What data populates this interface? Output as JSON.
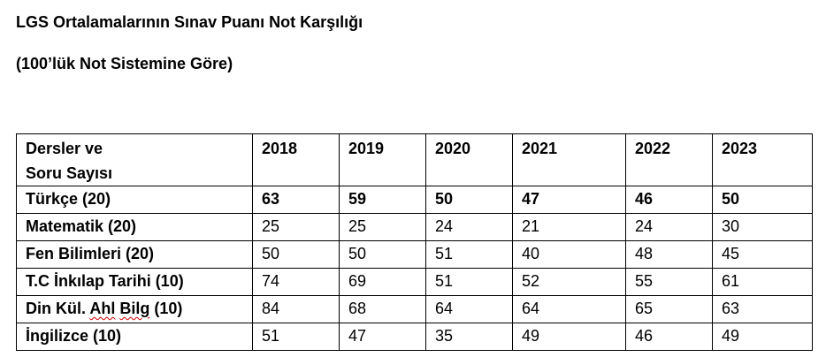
{
  "document": {
    "title": "LGS Ortalamalarının Sınav Puanı Not Karşılığı",
    "subtitle": "(100’lük Not Sistemine Göre)"
  },
  "table": {
    "header": {
      "subject_line1": "Dersler ve",
      "subject_line2": "Soru Sayısı",
      "years": [
        "2018",
        "2019",
        "2020",
        "2021",
        "2022",
        "2023"
      ]
    },
    "rows": [
      {
        "subject": "Türkçe (20)",
        "values": [
          "63",
          "59",
          "50",
          "47",
          "46",
          "50"
        ],
        "bold": true
      },
      {
        "subject": "Matematik (20)",
        "values": [
          "25",
          "25",
          "24",
          "21",
          "24",
          "30"
        ],
        "bold": false
      },
      {
        "subject": "Fen Bilimleri (20)",
        "values": [
          "50",
          "50",
          "51",
          "40",
          "48",
          "45"
        ],
        "bold": false
      },
      {
        "subject": "T.C İnkılap Tarihi (10)",
        "values": [
          "74",
          "69",
          "51",
          "52",
          "55",
          "61"
        ],
        "bold": false
      },
      {
        "subject_parts": [
          "Din Kül. ",
          "Ahl",
          " ",
          "Bilg",
          " (10)"
        ],
        "values": [
          "84",
          "68",
          "64",
          "64",
          "65",
          "63"
        ],
        "bold": false
      },
      {
        "subject": "İngilizce (10)",
        "values": [
          "51",
          "47",
          "35",
          "49",
          "46",
          "49"
        ],
        "bold": false
      }
    ]
  }
}
